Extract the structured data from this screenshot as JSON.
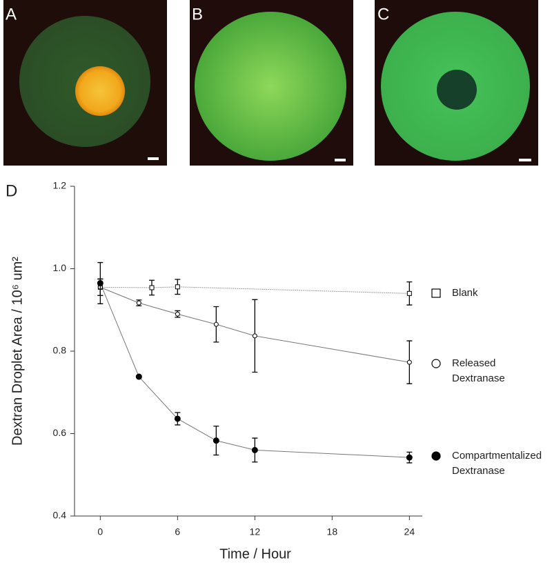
{
  "panels": [
    {
      "label": "A"
    },
    {
      "label": "B"
    },
    {
      "label": "C"
    }
  ],
  "chart_data": {
    "type": "scatter",
    "panel_label": "D",
    "x_label": "Time / Hour",
    "y_label": "Dextran Droplet Area / 10⁶ um²",
    "xlim": [
      -2,
      25
    ],
    "xticks": [
      0,
      6,
      12,
      18,
      24
    ],
    "ylim": [
      0.4,
      1.2
    ],
    "yticks": [
      0.4,
      0.6,
      0.8,
      {
        "value": 1,
        "label": "1.0"
      },
      1.2
    ],
    "series": [
      {
        "name": "Blank",
        "marker": "square",
        "filled": false,
        "line_style": "dotted",
        "color": "#000000",
        "x": [
          0,
          4,
          6,
          24
        ],
        "values": [
          0.955,
          0.954,
          0.956,
          0.94
        ],
        "errors": [
          0.02,
          0.018,
          0.018,
          0.028
        ]
      },
      {
        "name": "Released Dextranase",
        "marker": "circle",
        "filled": false,
        "line_style": "solid",
        "color": "#000000",
        "x": [
          0,
          3,
          6,
          9,
          12,
          24
        ],
        "values": [
          0.955,
          0.917,
          0.89,
          0.865,
          0.837,
          0.773
        ],
        "errors": [
          0.02,
          0.007,
          0.008,
          0.043,
          0.088,
          0.052
        ]
      },
      {
        "name": "Compartmentalized Dextranase",
        "marker": "circle",
        "filled": true,
        "line_style": "solid",
        "color": "#000000",
        "x": [
          0,
          3,
          6,
          9,
          12,
          24
        ],
        "values": [
          0.965,
          0.738,
          0.636,
          0.583,
          0.56,
          0.542
        ],
        "errors": [
          0.05,
          0.003,
          0.015,
          0.035,
          0.029,
          0.013
        ]
      }
    ]
  }
}
